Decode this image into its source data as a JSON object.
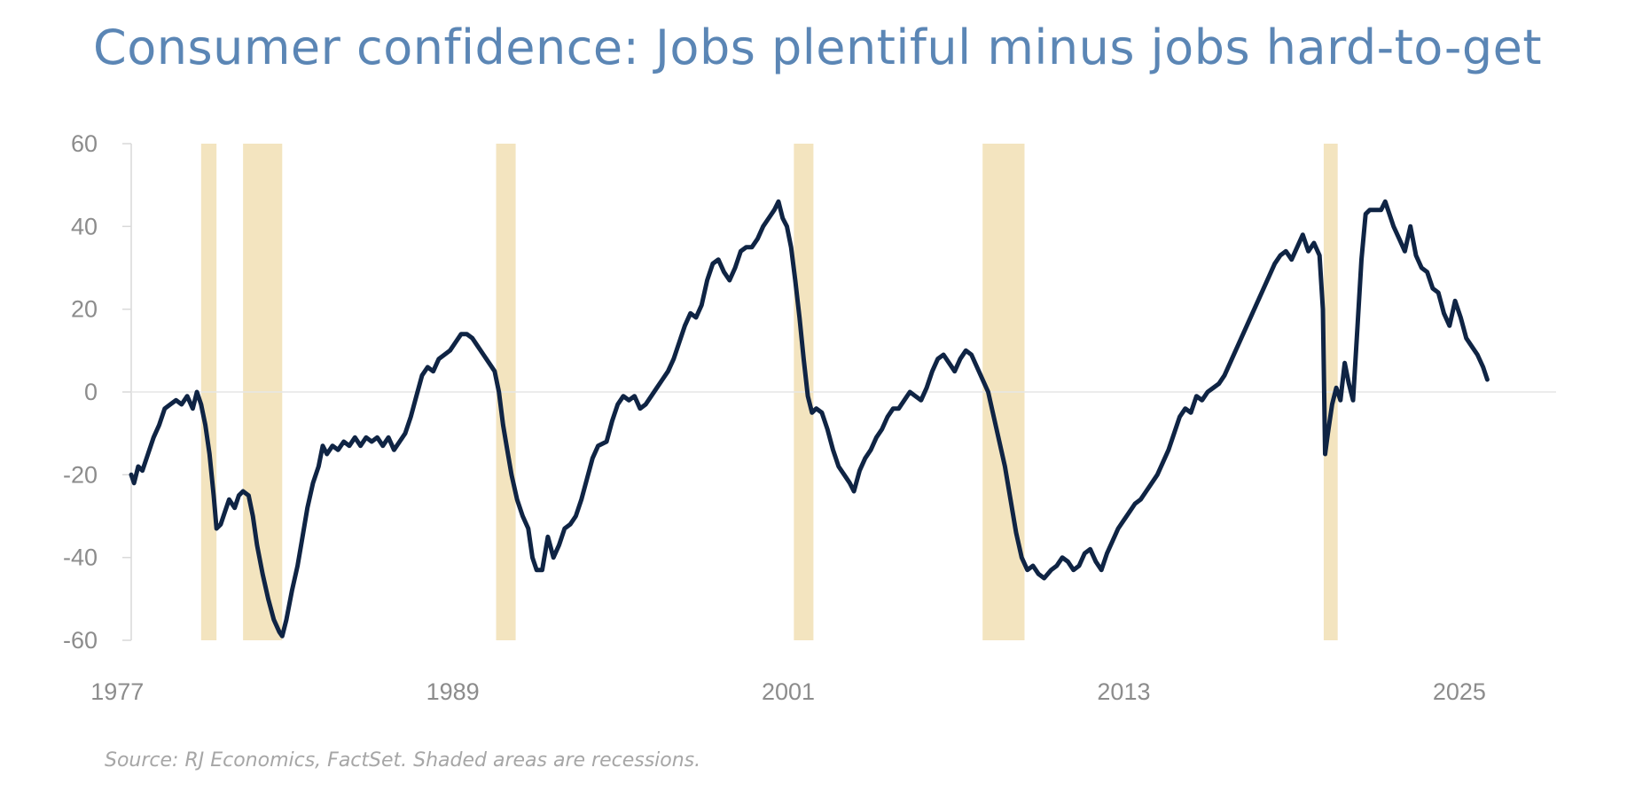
{
  "chart_data": {
    "type": "line",
    "title": "Consumer confidence: Jobs plentiful minus jobs hard-to-get",
    "note": "Source: RJ Economics, FactSet. Shaded areas are recessions.",
    "xlabel": "",
    "ylabel": "",
    "xlim": [
      1977.5,
      2026.4
    ],
    "ylim": [
      -60,
      60
    ],
    "x_ticks": [
      "1977",
      "1989",
      "2001",
      "2013",
      "2025"
    ],
    "x_tick_values": [
      1977,
      1989,
      2001,
      2013,
      2025
    ],
    "y_ticks": [
      60,
      40,
      20,
      0,
      -20,
      -40,
      -60
    ],
    "grid": "zero line only",
    "colors": {
      "line": "#0f2444",
      "recession": "#f3e4bf",
      "title": "#5b86b5",
      "axis": "#d9d9d9",
      "tick_text": "#8c8c8c"
    },
    "recessions": [
      [
        1980.0,
        1980.55
      ],
      [
        1981.5,
        1982.9
      ],
      [
        1990.55,
        1991.25
      ],
      [
        2001.2,
        2001.9
      ],
      [
        2007.95,
        2009.45
      ],
      [
        2020.15,
        2020.65
      ]
    ],
    "series": [
      {
        "values": [
          [
            1977.5,
            -20
          ],
          [
            1977.6,
            -22
          ],
          [
            1977.75,
            -18
          ],
          [
            1977.9,
            -19
          ],
          [
            1978.1,
            -15
          ],
          [
            1978.3,
            -11
          ],
          [
            1978.5,
            -8
          ],
          [
            1978.7,
            -4
          ],
          [
            1978.9,
            -3
          ],
          [
            1979.1,
            -2
          ],
          [
            1979.3,
            -3
          ],
          [
            1979.5,
            -1
          ],
          [
            1979.7,
            -4
          ],
          [
            1979.85,
            0
          ],
          [
            1980.0,
            -3
          ],
          [
            1980.15,
            -8
          ],
          [
            1980.3,
            -15
          ],
          [
            1980.45,
            -25
          ],
          [
            1980.55,
            -33
          ],
          [
            1980.7,
            -32
          ],
          [
            1980.85,
            -29
          ],
          [
            1981.0,
            -26
          ],
          [
            1981.2,
            -28
          ],
          [
            1981.35,
            -25
          ],
          [
            1981.5,
            -24
          ],
          [
            1981.7,
            -25
          ],
          [
            1981.85,
            -30
          ],
          [
            1982.0,
            -37
          ],
          [
            1982.2,
            -44
          ],
          [
            1982.4,
            -50
          ],
          [
            1982.6,
            -55
          ],
          [
            1982.8,
            -58
          ],
          [
            1982.9,
            -59
          ],
          [
            1983.05,
            -55
          ],
          [
            1983.25,
            -48
          ],
          [
            1983.45,
            -42
          ],
          [
            1983.6,
            -36
          ],
          [
            1983.8,
            -28
          ],
          [
            1984.0,
            -22
          ],
          [
            1984.2,
            -18
          ],
          [
            1984.35,
            -13
          ],
          [
            1984.5,
            -15
          ],
          [
            1984.7,
            -13
          ],
          [
            1984.9,
            -14
          ],
          [
            1985.1,
            -12
          ],
          [
            1985.3,
            -13
          ],
          [
            1985.5,
            -11
          ],
          [
            1985.7,
            -13
          ],
          [
            1985.9,
            -11
          ],
          [
            1986.1,
            -12
          ],
          [
            1986.3,
            -11
          ],
          [
            1986.5,
            -13
          ],
          [
            1986.7,
            -11
          ],
          [
            1986.9,
            -14
          ],
          [
            1987.1,
            -12
          ],
          [
            1987.3,
            -10
          ],
          [
            1987.5,
            -6
          ],
          [
            1987.7,
            -1
          ],
          [
            1987.9,
            4
          ],
          [
            1988.1,
            6
          ],
          [
            1988.3,
            5
          ],
          [
            1988.5,
            8
          ],
          [
            1988.7,
            9
          ],
          [
            1988.9,
            10
          ],
          [
            1989.1,
            12
          ],
          [
            1989.3,
            14
          ],
          [
            1989.5,
            14
          ],
          [
            1989.7,
            13
          ],
          [
            1989.9,
            11
          ],
          [
            1990.1,
            9
          ],
          [
            1990.3,
            7
          ],
          [
            1990.5,
            5
          ],
          [
            1990.65,
            0
          ],
          [
            1990.8,
            -8
          ],
          [
            1990.95,
            -14
          ],
          [
            1991.1,
            -20
          ],
          [
            1991.3,
            -26
          ],
          [
            1991.5,
            -30
          ],
          [
            1991.7,
            -33
          ],
          [
            1991.85,
            -40
          ],
          [
            1992.0,
            -43
          ],
          [
            1992.2,
            -43
          ],
          [
            1992.4,
            -35
          ],
          [
            1992.6,
            -40
          ],
          [
            1992.8,
            -37
          ],
          [
            1993.0,
            -33
          ],
          [
            1993.2,
            -32
          ],
          [
            1993.4,
            -30
          ],
          [
            1993.6,
            -26
          ],
          [
            1993.8,
            -21
          ],
          [
            1994.0,
            -16
          ],
          [
            1994.2,
            -13
          ],
          [
            1994.5,
            -12
          ],
          [
            1994.7,
            -7
          ],
          [
            1994.9,
            -3
          ],
          [
            1995.1,
            -1
          ],
          [
            1995.3,
            -2
          ],
          [
            1995.5,
            -1
          ],
          [
            1995.7,
            -4
          ],
          [
            1995.9,
            -3
          ],
          [
            1996.1,
            -1
          ],
          [
            1996.3,
            1
          ],
          [
            1996.5,
            3
          ],
          [
            1996.7,
            5
          ],
          [
            1996.9,
            8
          ],
          [
            1997.1,
            12
          ],
          [
            1997.3,
            16
          ],
          [
            1997.5,
            19
          ],
          [
            1997.7,
            18
          ],
          [
            1997.9,
            21
          ],
          [
            1998.1,
            27
          ],
          [
            1998.3,
            31
          ],
          [
            1998.5,
            32
          ],
          [
            1998.7,
            29
          ],
          [
            1998.9,
            27
          ],
          [
            1999.1,
            30
          ],
          [
            1999.3,
            34
          ],
          [
            1999.5,
            35
          ],
          [
            1999.7,
            35
          ],
          [
            1999.9,
            37
          ],
          [
            2000.1,
            40
          ],
          [
            2000.3,
            42
          ],
          [
            2000.5,
            44
          ],
          [
            2000.65,
            46
          ],
          [
            2000.8,
            42
          ],
          [
            2000.95,
            40
          ],
          [
            2001.1,
            35
          ],
          [
            2001.25,
            27
          ],
          [
            2001.4,
            18
          ],
          [
            2001.55,
            8
          ],
          [
            2001.7,
            -1
          ],
          [
            2001.85,
            -5
          ],
          [
            2002.0,
            -4
          ],
          [
            2002.2,
            -5
          ],
          [
            2002.4,
            -9
          ],
          [
            2002.6,
            -14
          ],
          [
            2002.8,
            -18
          ],
          [
            2003.0,
            -20
          ],
          [
            2003.2,
            -22
          ],
          [
            2003.35,
            -24
          ],
          [
            2003.55,
            -19
          ],
          [
            2003.75,
            -16
          ],
          [
            2003.95,
            -14
          ],
          [
            2004.15,
            -11
          ],
          [
            2004.35,
            -9
          ],
          [
            2004.55,
            -6
          ],
          [
            2004.75,
            -4
          ],
          [
            2004.95,
            -4
          ],
          [
            2005.15,
            -2
          ],
          [
            2005.35,
            0
          ],
          [
            2005.55,
            -1
          ],
          [
            2005.75,
            -2
          ],
          [
            2005.95,
            1
          ],
          [
            2006.15,
            5
          ],
          [
            2006.35,
            8
          ],
          [
            2006.55,
            9
          ],
          [
            2006.75,
            7
          ],
          [
            2006.95,
            5
          ],
          [
            2007.15,
            8
          ],
          [
            2007.35,
            10
          ],
          [
            2007.55,
            9
          ],
          [
            2007.75,
            6
          ],
          [
            2007.95,
            3
          ],
          [
            2008.15,
            0
          ],
          [
            2008.35,
            -6
          ],
          [
            2008.55,
            -12
          ],
          [
            2008.75,
            -18
          ],
          [
            2008.95,
            -26
          ],
          [
            2009.15,
            -34
          ],
          [
            2009.35,
            -40
          ],
          [
            2009.55,
            -43
          ],
          [
            2009.75,
            -42
          ],
          [
            2009.95,
            -44
          ],
          [
            2010.15,
            -45
          ],
          [
            2010.4,
            -43
          ],
          [
            2010.6,
            -42
          ],
          [
            2010.8,
            -40
          ],
          [
            2011.0,
            -41
          ],
          [
            2011.2,
            -43
          ],
          [
            2011.4,
            -42
          ],
          [
            2011.6,
            -39
          ],
          [
            2011.8,
            -38
          ],
          [
            2012.0,
            -41
          ],
          [
            2012.2,
            -43
          ],
          [
            2012.4,
            -39
          ],
          [
            2012.6,
            -36
          ],
          [
            2012.8,
            -33
          ],
          [
            2013.0,
            -31
          ],
          [
            2013.2,
            -29
          ],
          [
            2013.4,
            -27
          ],
          [
            2013.6,
            -26
          ],
          [
            2013.8,
            -24
          ],
          [
            2014.0,
            -22
          ],
          [
            2014.2,
            -20
          ],
          [
            2014.4,
            -17
          ],
          [
            2014.6,
            -14
          ],
          [
            2014.8,
            -10
          ],
          [
            2015.0,
            -6
          ],
          [
            2015.2,
            -4
          ],
          [
            2015.4,
            -5
          ],
          [
            2015.6,
            -1
          ],
          [
            2015.8,
            -2
          ],
          [
            2016.0,
            0
          ],
          [
            2016.2,
            1
          ],
          [
            2016.4,
            2
          ],
          [
            2016.6,
            4
          ],
          [
            2016.8,
            7
          ],
          [
            2017.0,
            10
          ],
          [
            2017.2,
            13
          ],
          [
            2017.4,
            16
          ],
          [
            2017.6,
            19
          ],
          [
            2017.8,
            22
          ],
          [
            2018.0,
            25
          ],
          [
            2018.2,
            28
          ],
          [
            2018.4,
            31
          ],
          [
            2018.6,
            33
          ],
          [
            2018.8,
            34
          ],
          [
            2019.0,
            32
          ],
          [
            2019.2,
            35
          ],
          [
            2019.4,
            38
          ],
          [
            2019.6,
            34
          ],
          [
            2019.8,
            36
          ],
          [
            2020.0,
            33
          ],
          [
            2020.12,
            20
          ],
          [
            2020.2,
            -15
          ],
          [
            2020.3,
            -10
          ],
          [
            2020.45,
            -3
          ],
          [
            2020.6,
            1
          ],
          [
            2020.75,
            -2
          ],
          [
            2020.9,
            7
          ],
          [
            2021.05,
            2
          ],
          [
            2021.2,
            -2
          ],
          [
            2021.35,
            15
          ],
          [
            2021.5,
            32
          ],
          [
            2021.65,
            43
          ],
          [
            2021.8,
            44
          ],
          [
            2022.0,
            44
          ],
          [
            2022.2,
            44
          ],
          [
            2022.35,
            46
          ],
          [
            2022.5,
            43
          ],
          [
            2022.65,
            40
          ],
          [
            2022.85,
            37
          ],
          [
            2023.05,
            34
          ],
          [
            2023.25,
            40
          ],
          [
            2023.45,
            33
          ],
          [
            2023.65,
            30
          ],
          [
            2023.85,
            29
          ],
          [
            2024.05,
            25
          ],
          [
            2024.25,
            24
          ],
          [
            2024.45,
            19
          ],
          [
            2024.65,
            16
          ],
          [
            2024.85,
            22
          ],
          [
            2025.05,
            18
          ],
          [
            2025.25,
            13
          ],
          [
            2025.45,
            11
          ],
          [
            2025.65,
            9
          ],
          [
            2025.85,
            6
          ],
          [
            2026.0,
            3
          ]
        ]
      }
    ]
  }
}
